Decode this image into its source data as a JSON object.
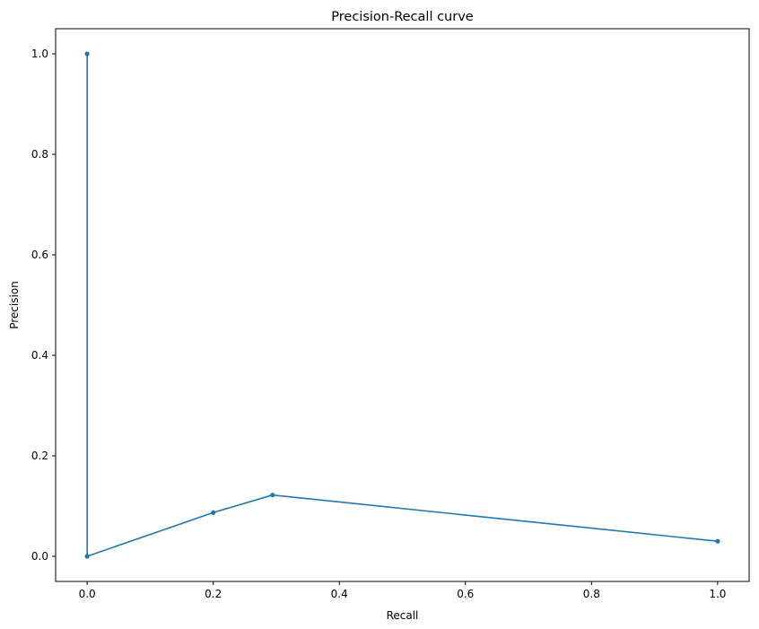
{
  "chart_data": {
    "type": "line",
    "title": "Precision-Recall curve",
    "xlabel": "Recall",
    "ylabel": "Precision",
    "xlim": [
      -0.05,
      1.05
    ],
    "ylim": [
      -0.05,
      1.05
    ],
    "xticks": [
      0.0,
      0.2,
      0.4,
      0.6,
      0.8,
      1.0
    ],
    "xtick_labels": [
      "0.0",
      "0.2",
      "0.4",
      "0.6",
      "0.8",
      "1.0"
    ],
    "yticks": [
      0.0,
      0.2,
      0.4,
      0.6,
      0.8,
      1.0
    ],
    "ytick_labels": [
      "0.0",
      "0.2",
      "0.4",
      "0.6",
      "0.8",
      "1.0"
    ],
    "grid": false,
    "legend": "none",
    "series": [
      {
        "color": "#1f77b4",
        "marker": "dot",
        "x": [
          0.0,
          0.0,
          0.2,
          0.294,
          1.0
        ],
        "y": [
          1.0,
          0.0,
          0.087,
          0.122,
          0.03
        ]
      }
    ]
  }
}
